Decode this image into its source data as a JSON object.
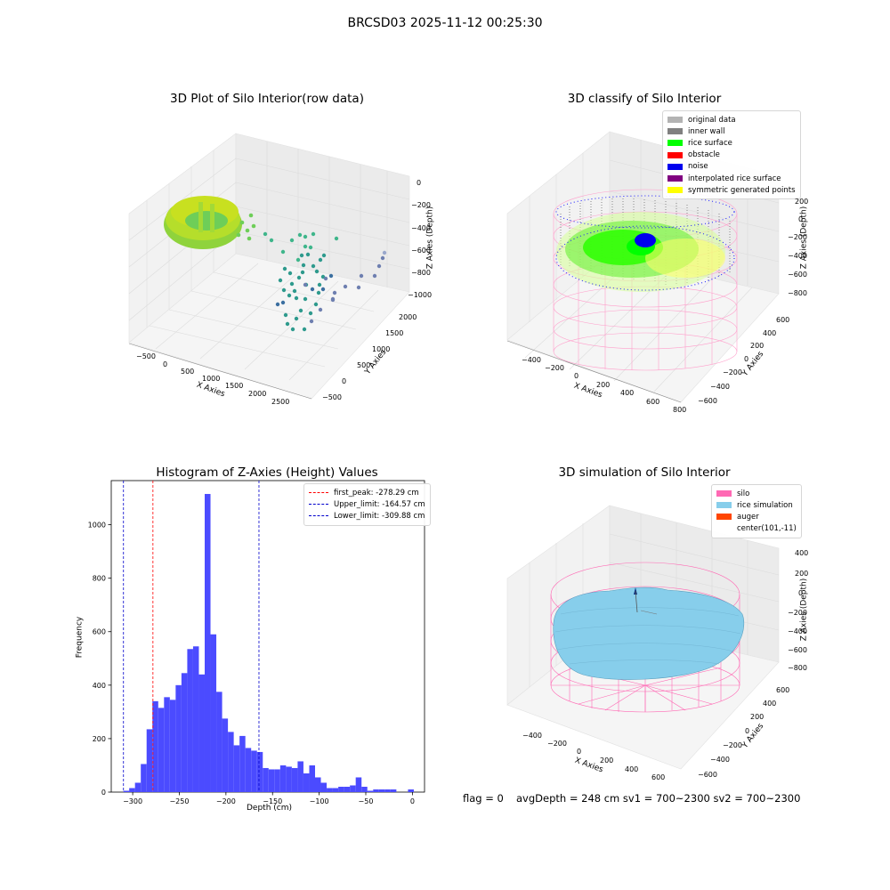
{
  "suptitle": "BRCSD03 2025-11-12 00:25:30",
  "panels": {
    "raw": {
      "title": "3D Plot of Silo Interior(row data)",
      "xlabel": "X Axies",
      "ylabel": "Y Axies",
      "zlabel": "Z Axies (Depth)",
      "xticks": [
        "−500",
        "0",
        "500",
        "1000",
        "1500",
        "2000",
        "2500"
      ],
      "yticks": [
        "2000",
        "1500",
        "1000",
        "500",
        "0",
        "−500"
      ],
      "zticks": [
        "0",
        "−200",
        "−400",
        "−600",
        "−800",
        "−1000"
      ]
    },
    "classify": {
      "title": "3D classify of Silo Interior",
      "xlabel": "X Axies",
      "ylabel": "Y Axies",
      "zlabel": "Z Axies (Depth)",
      "xticks": [
        "−400",
        "−200",
        "0",
        "200",
        "400",
        "600",
        "800"
      ],
      "yticks": [
        "600",
        "400",
        "200",
        "0",
        "−200",
        "−400",
        "−600"
      ],
      "zticks": [
        "200",
        "0",
        "−200",
        "−400",
        "−600",
        "−800"
      ],
      "legend": [
        {
          "label": "original data",
          "color": "#b3b3b3"
        },
        {
          "label": "inner wall",
          "color": "#808080"
        },
        {
          "label": "rice surface",
          "color": "#00ff00"
        },
        {
          "label": "obstacle",
          "color": "#ff0000"
        },
        {
          "label": "noise",
          "color": "#0000ee"
        },
        {
          "label": "interpolated rice surface",
          "color": "#800080"
        },
        {
          "label": "symmetric generated points",
          "color": "#ffff00"
        }
      ]
    },
    "simulation": {
      "title": "3D simulation of Silo Interior",
      "xlabel": "X Axies",
      "ylabel": "Y Axies",
      "zlabel": "Z Axies (Depth)",
      "xticks": [
        "−400",
        "−200",
        "0",
        "200",
        "400",
        "600"
      ],
      "yticks": [
        "600",
        "400",
        "200",
        "0",
        "−200",
        "−400",
        "−600"
      ],
      "zticks": [
        "400",
        "200",
        "0",
        "−200",
        "−400",
        "−600",
        "−800"
      ],
      "legend": [
        {
          "label": "silo",
          "color": "#ff69b4"
        },
        {
          "label": "rice simulation",
          "color": "#87ceeb"
        },
        {
          "label": "auger",
          "color": "#ff4500"
        },
        {
          "label": "center(101,-11)",
          "color": ""
        }
      ]
    }
  },
  "chart_data": {
    "type": "bar",
    "title": "Histogram of Z-Axies (Height) Values",
    "xlabel": "Depth (cm)",
    "ylabel": "Frequency",
    "xlim": [
      -323,
      13
    ],
    "ylim": [
      0,
      1165
    ],
    "xticks": [
      -300,
      -250,
      -200,
      -150,
      -100,
      -50,
      0
    ],
    "yticks": [
      0,
      200,
      400,
      600,
      800,
      1000
    ],
    "bar_color": "#4b4bff",
    "bin_start": -310,
    "bin_width": 6.23,
    "values": [
      5,
      15,
      35,
      105,
      235,
      340,
      315,
      355,
      345,
      400,
      445,
      535,
      545,
      440,
      1115,
      590,
      375,
      275,
      225,
      175,
      210,
      165,
      155,
      150,
      90,
      85,
      85,
      100,
      95,
      90,
      115,
      70,
      100,
      55,
      35,
      15,
      15,
      20,
      20,
      25,
      55,
      20,
      5,
      10,
      10,
      10,
      10,
      0,
      0,
      10
    ],
    "vlines": [
      {
        "label": "first_peak: -278.29 cm",
        "x": -278.29,
        "color": "#ff0000"
      },
      {
        "label": "Upper_limit: -164.57 cm",
        "x": -164.57,
        "color": "#0000cc"
      },
      {
        "label": "Lower_limit: -309.88 cm",
        "x": -309.88,
        "color": "#0000cc"
      }
    ]
  },
  "footer": {
    "flag": "flag = 0",
    "stats": "avgDepth = 248 cm  sv1 = 700~2300  sv2 = 700~2300"
  }
}
